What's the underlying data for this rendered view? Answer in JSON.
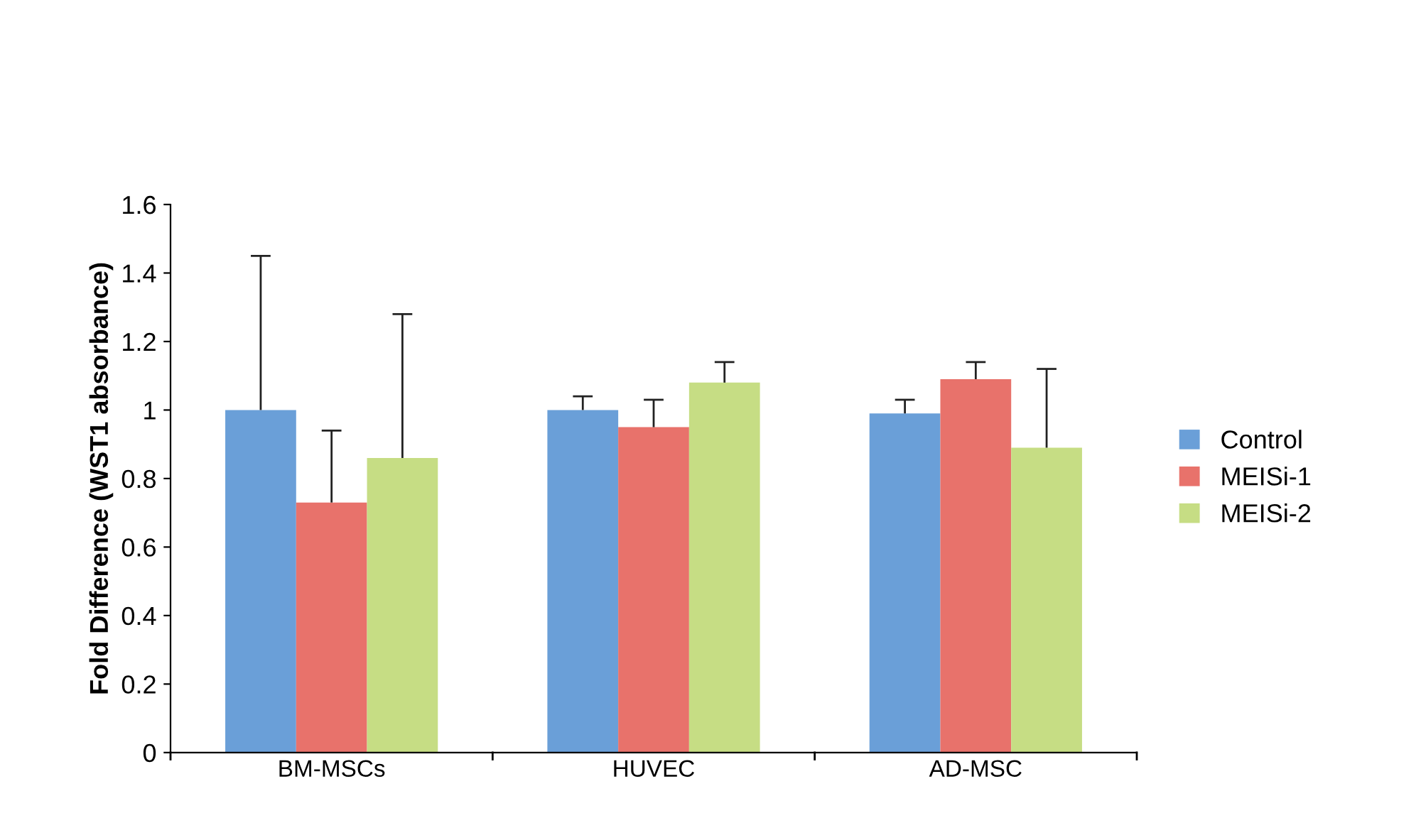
{
  "chart_data": {
    "type": "bar",
    "ylabel": "Fold Difference (WST1 absorbance)",
    "categories": [
      "BM-MSCs",
      "HUVEC",
      "AD-MSC"
    ],
    "series": [
      {
        "name": "Control",
        "color": "#6a9fd8",
        "values": [
          1.0,
          1.0,
          0.99
        ],
        "errors": [
          [
            1.0,
            1.45
          ],
          [
            1.0,
            1.04
          ],
          [
            0.99,
            1.03
          ]
        ]
      },
      {
        "name": "MEISi-1",
        "color": "#e8726b",
        "values": [
          0.73,
          0.95,
          1.09
        ],
        "errors": [
          [
            0.73,
            0.94
          ],
          [
            0.95,
            1.03
          ],
          [
            1.09,
            1.14
          ]
        ]
      },
      {
        "name": "MEISi-2",
        "color": "#c6dd84",
        "values": [
          0.86,
          1.08,
          0.89
        ],
        "errors": [
          [
            0.86,
            1.28
          ],
          [
            1.08,
            1.14
          ],
          [
            0.89,
            1.12
          ]
        ]
      }
    ],
    "ylim": [
      0,
      1.6
    ],
    "yticks": [
      0,
      {
        "value": 0.2,
        "label": "0.2"
      },
      {
        "value": 0.4,
        "label": "0.4"
      },
      {
        "value": 0.6,
        "label": "0.6"
      },
      {
        "value": 0.8,
        "label": "0.8"
      },
      1,
      {
        "value": 1.2,
        "label": "1.2"
      },
      {
        "value": 1.4,
        "label": "1.4"
      },
      {
        "value": 1.6,
        "label": "1.6"
      }
    ],
    "grid": false,
    "legend": "right"
  }
}
